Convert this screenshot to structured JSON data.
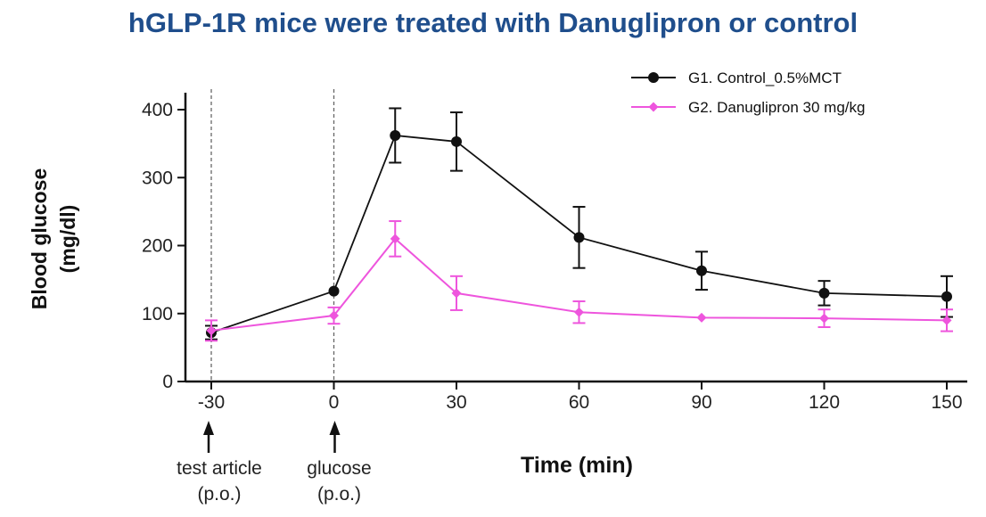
{
  "title": "hGLP-1R mice were treated with Danuglipron or control",
  "colors": {
    "title": "#1f4e8c",
    "control": "#111111",
    "danuglipron": "#ee55dd",
    "axis": "#111111"
  },
  "chart_data": {
    "type": "line",
    "title": "hGLP-1R mice were treated with Danuglipron or control",
    "xlabel": "Time (min)",
    "ylabel_lines": [
      "Blood glucose",
      "(mg/dl)"
    ],
    "xlim": [
      -35,
      153
    ],
    "ylim": [
      0,
      420
    ],
    "x_ticks": [
      -30,
      0,
      30,
      60,
      90,
      120,
      150
    ],
    "y_ticks": [
      0,
      100,
      200,
      300,
      400
    ],
    "legend_position": "top-right",
    "series": [
      {
        "name": "G1. Control_0.5%MCT",
        "marker": "circle",
        "x": [
          -30,
          0,
          15,
          30,
          60,
          90,
          120,
          150
        ],
        "y": [
          72,
          133,
          362,
          353,
          212,
          163,
          130,
          125
        ],
        "err": [
          10,
          0,
          40,
          43,
          45,
          28,
          18,
          30
        ]
      },
      {
        "name": "G2. Danuglipron  30 mg/kg",
        "marker": "diamond",
        "x": [
          -30,
          0,
          15,
          30,
          60,
          90,
          120,
          150
        ],
        "y": [
          75,
          97,
          210,
          130,
          102,
          94,
          93,
          90
        ],
        "err": [
          15,
          12,
          26,
          25,
          16,
          0,
          13,
          16
        ]
      }
    ],
    "annotations": [
      {
        "x": -30,
        "lines": [
          "test article",
          "(p.o.)"
        ]
      },
      {
        "x": 0,
        "lines": [
          "glucose",
          "(p.o.)"
        ]
      }
    ]
  }
}
